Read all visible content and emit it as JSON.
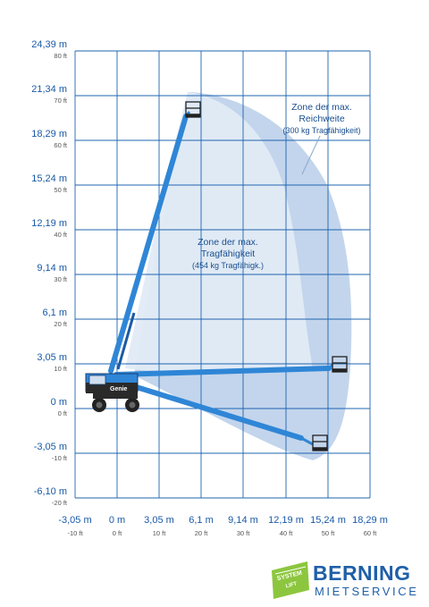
{
  "axes": {
    "y_labels": [
      {
        "m": "24,39 m",
        "ft": "80 ft"
      },
      {
        "m": "21,34 m",
        "ft": "70 ft"
      },
      {
        "m": "18,29 m",
        "ft": "60 ft"
      },
      {
        "m": "15,24 m",
        "ft": "50 ft"
      },
      {
        "m": "12,19 m",
        "ft": "40 ft"
      },
      {
        "m": "9,14 m",
        "ft": "30 ft"
      },
      {
        "m": "6,1 m",
        "ft": "20 ft"
      },
      {
        "m": "3,05 m",
        "ft": "10 ft"
      },
      {
        "m": "0 m",
        "ft": "0 ft"
      },
      {
        "m": "-3,05 m",
        "ft": "-10 ft"
      },
      {
        "m": "-6,10 m",
        "ft": "-20 ft"
      }
    ],
    "x_labels": [
      {
        "m": "-3,05 m",
        "ft": "-10 ft"
      },
      {
        "m": "0 m",
        "ft": "0 ft"
      },
      {
        "m": "3,05 m",
        "ft": "10 ft"
      },
      {
        "m": "6,1 m",
        "ft": "20 ft"
      },
      {
        "m": "9,14 m",
        "ft": "30 ft"
      },
      {
        "m": "12,19 m",
        "ft": "40 ft"
      },
      {
        "m": "15,24 m",
        "ft": "50 ft"
      },
      {
        "m": "18,29 m",
        "ft": "60 ft"
      }
    ]
  },
  "zones": {
    "reach": {
      "line1": "Zone der max.",
      "line2": "Reichweite",
      "line3": "(300 kg Tragfähigkeit)"
    },
    "capacity": {
      "line1": "Zone der max.",
      "line2": "Tragfähigkeit",
      "line3": "(454 kg Tragfähigk.)"
    }
  },
  "machine": {
    "brand_label": "Genie"
  },
  "logo": {
    "badge_line1": "SYSTEM",
    "badge_line2": "LIFT",
    "name": "BERNING",
    "sub": "MIETSERVICE"
  },
  "colors": {
    "grid": "#1f64b0",
    "zone_outer": "#bcd0ea",
    "zone_inner": "#e2ebf6",
    "boom": "#2f86d6",
    "brand": "#1f5fa8",
    "green": "#8cc63f"
  }
}
